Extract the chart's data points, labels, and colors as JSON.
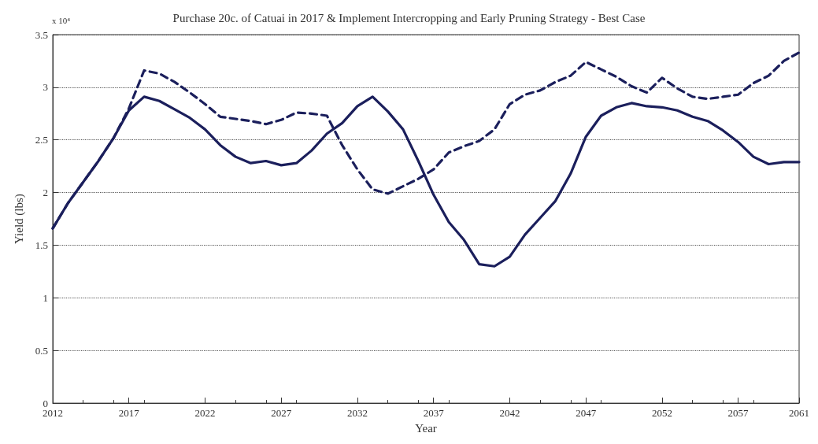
{
  "chart_data": {
    "type": "line",
    "title": "Purchase 20c. of Catuai in 2017 & Implement Intercropping and Early Pruning Strategy - Best Case",
    "xlabel": "Year",
    "ylabel": "Yield (lbs)",
    "annotations": [
      "x 10⁴"
    ],
    "x": [
      2012,
      2013,
      2014,
      2015,
      2016,
      2017,
      2018,
      2019,
      2020,
      2021,
      2022,
      2023,
      2024,
      2025,
      2026,
      2027,
      2028,
      2029,
      2030,
      2031,
      2032,
      2033,
      2034,
      2035,
      2036,
      2037,
      2038,
      2039,
      2040,
      2041,
      2042,
      2043,
      2044,
      2045,
      2046,
      2047,
      2048,
      2049,
      2050,
      2051,
      2052,
      2053,
      2054,
      2055,
      2056,
      2057,
      2058,
      2059,
      2060,
      2061
    ],
    "xlim": [
      2012,
      2061
    ],
    "xticks": [
      2012,
      2017,
      2022,
      2027,
      2032,
      2037,
      2042,
      2047,
      2052,
      2057,
      2061
    ],
    "ylim": [
      0,
      3.5
    ],
    "yticks": [
      0,
      0.5,
      1,
      1.5,
      2,
      2.5,
      3,
      3.5
    ],
    "grid": "y",
    "series": [
      {
        "color": "#1b1f5c",
        "line_style": "solid",
        "values": [
          1.66,
          1.9,
          2.1,
          2.3,
          2.52,
          2.78,
          2.91,
          2.87,
          2.79,
          2.71,
          2.6,
          2.45,
          2.34,
          2.28,
          2.3,
          2.26,
          2.28,
          2.4,
          2.56,
          2.66,
          2.82,
          2.91,
          2.77,
          2.6,
          2.3,
          1.98,
          1.72,
          1.55,
          1.32,
          1.3,
          1.39,
          1.6,
          1.76,
          1.92,
          2.18,
          2.53,
          2.73,
          2.81,
          2.85,
          2.82,
          2.81,
          2.78,
          2.72,
          2.68,
          2.59,
          2.48,
          2.34,
          2.27,
          2.29,
          2.29
        ]
      },
      {
        "color": "#1b1f5c",
        "line_style": "dashed",
        "values": [
          1.66,
          1.9,
          2.1,
          2.3,
          2.52,
          2.8,
          3.16,
          3.13,
          3.05,
          2.95,
          2.84,
          2.72,
          2.7,
          2.68,
          2.65,
          2.69,
          2.76,
          2.75,
          2.73,
          2.45,
          2.22,
          2.03,
          1.99,
          2.06,
          2.13,
          2.22,
          2.38,
          2.44,
          2.49,
          2.6,
          2.84,
          2.93,
          2.97,
          3.05,
          3.11,
          3.24,
          3.17,
          3.1,
          3.01,
          2.95,
          3.09,
          2.99,
          2.91,
          2.89,
          2.91,
          2.93,
          3.04,
          3.11,
          3.25,
          3.33
        ]
      }
    ]
  }
}
